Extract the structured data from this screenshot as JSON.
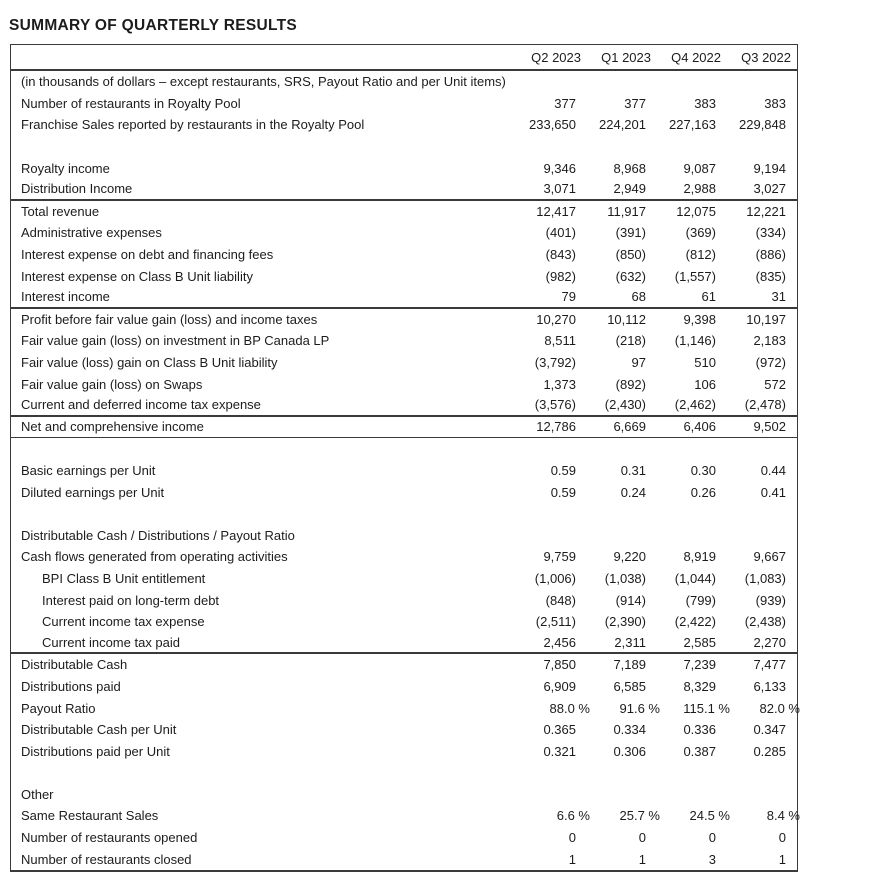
{
  "title": "SUMMARY OF QUARTERLY RESULTS",
  "table": {
    "columns": [
      "Q2 2023",
      "Q1 2023",
      "Q4 2022",
      "Q3 2022"
    ],
    "rows": [
      {
        "kind": "note",
        "label": "(in thousands of dollars – except restaurants, SRS, Payout Ratio and per Unit items)"
      },
      {
        "kind": "data",
        "label": "Number of restaurants in Royalty Pool",
        "values": [
          "377",
          "377",
          "383",
          "383"
        ]
      },
      {
        "kind": "data",
        "label": "Franchise Sales reported by restaurants in the Royalty Pool",
        "values": [
          "233,650",
          "224,201",
          "227,163",
          "229,848"
        ]
      },
      {
        "kind": "blank"
      },
      {
        "kind": "data",
        "label": "Royalty income",
        "values": [
          "9,346",
          "8,968",
          "9,087",
          "9,194"
        ]
      },
      {
        "kind": "data",
        "label": "Distribution Income",
        "values": [
          "3,071",
          "2,949",
          "2,988",
          "3,027"
        ],
        "rule": "thick"
      },
      {
        "kind": "data",
        "label": "Total revenue",
        "values": [
          "12,417",
          "11,917",
          "12,075",
          "12,221"
        ]
      },
      {
        "kind": "data",
        "label": "Administrative expenses",
        "values": [
          "(401)",
          "(391)",
          "(369)",
          "(334)"
        ]
      },
      {
        "kind": "data",
        "label": "Interest expense on debt and financing fees",
        "values": [
          "(843)",
          "(850)",
          "(812)",
          "(886)"
        ]
      },
      {
        "kind": "data",
        "label": "Interest expense on Class B Unit liability",
        "values": [
          "(982)",
          "(632)",
          "(1,557)",
          "(835)"
        ]
      },
      {
        "kind": "data",
        "label": "Interest income",
        "values": [
          "79",
          "68",
          "61",
          "31"
        ],
        "rule": "thick"
      },
      {
        "kind": "data",
        "label": "Profit before fair value gain (loss) and income taxes",
        "values": [
          "10,270",
          "10,112",
          "9,398",
          "10,197"
        ]
      },
      {
        "kind": "data",
        "label": "Fair value gain (loss) on investment in BP Canada LP",
        "values": [
          "8,511",
          "(218)",
          "(1,146)",
          "2,183"
        ]
      },
      {
        "kind": "data",
        "label": "Fair value (loss) gain on Class B Unit liability",
        "values": [
          "(3,792)",
          "97",
          "510",
          "(972)"
        ]
      },
      {
        "kind": "data",
        "label": "Fair value gain (loss) on Swaps",
        "values": [
          "1,373",
          "(892)",
          "106",
          "572"
        ]
      },
      {
        "kind": "data",
        "label": "Current and deferred income tax expense",
        "values": [
          "(3,576)",
          "(2,430)",
          "(2,462)",
          "(2,478)"
        ],
        "rule": "thick"
      },
      {
        "kind": "data",
        "label": "Net and comprehensive income",
        "values": [
          "12,786",
          "6,669",
          "6,406",
          "9,502"
        ],
        "rule": "thin"
      },
      {
        "kind": "blank"
      },
      {
        "kind": "data",
        "label": "Basic earnings per Unit",
        "values": [
          "0.59",
          "0.31",
          "0.30",
          "0.44"
        ]
      },
      {
        "kind": "data",
        "label": "Diluted earnings per Unit",
        "values": [
          "0.59",
          "0.24",
          "0.26",
          "0.41"
        ]
      },
      {
        "kind": "blank"
      },
      {
        "kind": "section",
        "label": "Distributable Cash / Distributions / Payout Ratio"
      },
      {
        "kind": "data",
        "label": "Cash flows generated from operating activities",
        "values": [
          "9,759",
          "9,220",
          "8,919",
          "9,667"
        ]
      },
      {
        "kind": "data",
        "label": "BPI Class B Unit entitlement",
        "indent": true,
        "values": [
          "(1,006)",
          "(1,038)",
          "(1,044)",
          "(1,083)"
        ]
      },
      {
        "kind": "data",
        "label": "Interest paid on long-term debt",
        "indent": true,
        "values": [
          "(848)",
          "(914)",
          "(799)",
          "(939)"
        ]
      },
      {
        "kind": "data",
        "label": "Current income tax expense",
        "indent": true,
        "values": [
          "(2,511)",
          "(2,390)",
          "(2,422)",
          "(2,438)"
        ]
      },
      {
        "kind": "data",
        "label": "Current income tax paid",
        "indent": true,
        "values": [
          "2,456",
          "2,311",
          "2,585",
          "2,270"
        ],
        "rule": "thick"
      },
      {
        "kind": "data",
        "label": "Distributable Cash",
        "values": [
          "7,850",
          "7,189",
          "7,239",
          "7,477"
        ]
      },
      {
        "kind": "data",
        "label": "Distributions paid",
        "values": [
          "6,909",
          "6,585",
          "8,329",
          "6,133"
        ]
      },
      {
        "kind": "data",
        "label": "Payout Ratio",
        "pct": true,
        "values": [
          "88.0 %",
          "91.6 %",
          "115.1 %",
          "82.0 %"
        ]
      },
      {
        "kind": "data",
        "label": "Distributable Cash per Unit",
        "values": [
          "0.365",
          "0.334",
          "0.336",
          "0.347"
        ]
      },
      {
        "kind": "data",
        "label": "Distributions paid per Unit",
        "values": [
          "0.321",
          "0.306",
          "0.387",
          "0.285"
        ]
      },
      {
        "kind": "blank"
      },
      {
        "kind": "section",
        "label": "Other"
      },
      {
        "kind": "data",
        "label": "Same Restaurant Sales",
        "pct": true,
        "values": [
          "6.6 %",
          "25.7 %",
          "24.5 %",
          "8.4 %"
        ]
      },
      {
        "kind": "data",
        "label": "Number of restaurants opened",
        "values": [
          "0",
          "0",
          "0",
          "0"
        ]
      },
      {
        "kind": "data",
        "label": "Number of restaurants closed",
        "values": [
          "1",
          "1",
          "3",
          "1"
        ]
      }
    ]
  }
}
